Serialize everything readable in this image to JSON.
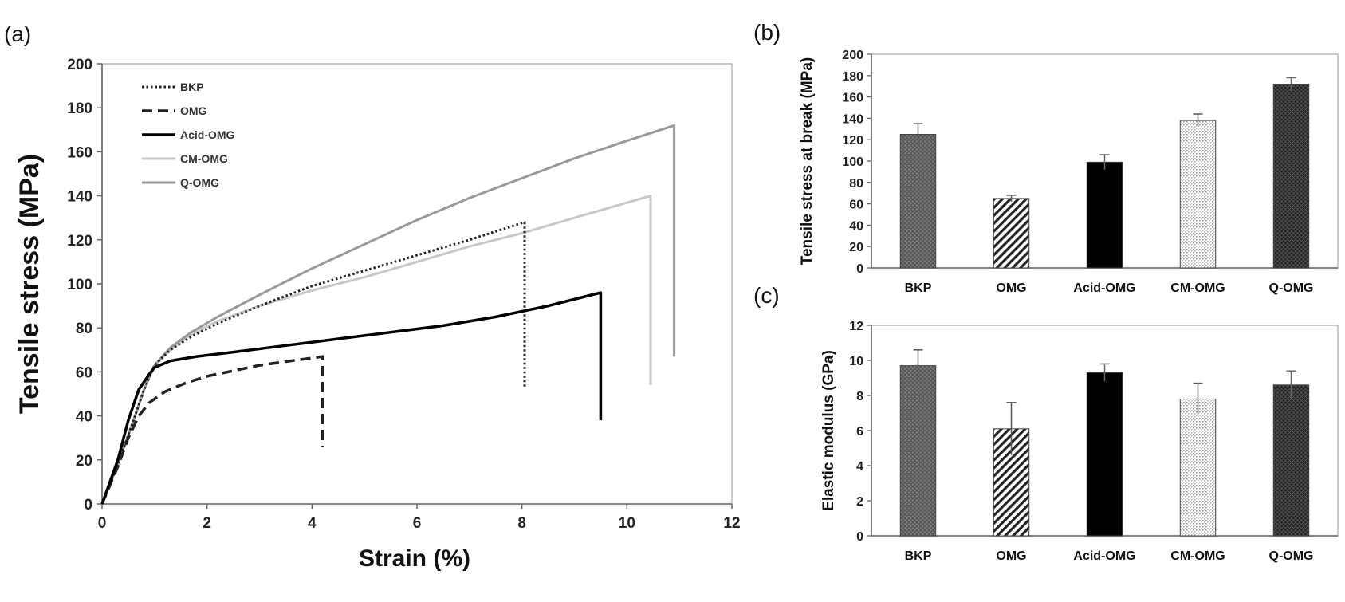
{
  "chart_data": [
    {
      "panel": "(a)",
      "type": "line",
      "xlabel": "Strain (%)",
      "ylabel": "Tensile stress (MPa)",
      "xlim": [
        0,
        12
      ],
      "ylim": [
        0,
        200
      ],
      "xticks": [
        "0",
        "2",
        "4",
        "6",
        "8",
        "10",
        "12"
      ],
      "yticks": [
        "0",
        "20",
        "40",
        "60",
        "80",
        "100",
        "120",
        "140",
        "160",
        "180",
        "200"
      ],
      "legend": "top-left",
      "series": [
        {
          "name": "BKP",
          "style": "dotted",
          "color": "#222222",
          "x": [
            0,
            0.3,
            0.6,
            0.8,
            1.0,
            1.3,
            1.7,
            2.2,
            3,
            4,
            5,
            6,
            7,
            8.05,
            8.05
          ],
          "y": [
            0,
            18,
            38,
            52,
            63,
            70,
            76,
            82,
            90,
            99,
            106,
            113,
            120,
            128,
            53
          ]
        },
        {
          "name": "OMG",
          "style": "dashed",
          "color": "#222222",
          "x": [
            0,
            0.3,
            0.5,
            0.7,
            0.9,
            1.2,
            1.6,
            2,
            3,
            4.2,
            4.2
          ],
          "y": [
            0,
            17,
            30,
            40,
            46,
            51,
            55,
            58,
            63,
            67,
            26
          ]
        },
        {
          "name": "Acid-OMG",
          "style": "solid",
          "color": "#000000",
          "x": [
            0,
            0.3,
            0.5,
            0.7,
            0.9,
            1.0,
            1.3,
            1.8,
            2.5,
            3.5,
            4.5,
            5.5,
            6.5,
            7.5,
            8.5,
            9.5,
            9.5
          ],
          "y": [
            0,
            20,
            38,
            52,
            59,
            62,
            65,
            67,
            69,
            72,
            75,
            78,
            81,
            85,
            90,
            96,
            38
          ]
        },
        {
          "name": "CM-OMG",
          "style": "solid",
          "color": "#c8c8c8",
          "x": [
            0,
            0.3,
            0.6,
            0.8,
            1.0,
            1.3,
            1.7,
            2.2,
            3,
            4,
            5,
            6,
            7,
            8,
            9,
            10.45,
            10.45
          ],
          "y": [
            0,
            18,
            38,
            52,
            63,
            70,
            77,
            83,
            90,
            97,
            103,
            110,
            117,
            123,
            130,
            140,
            54
          ]
        },
        {
          "name": "Q-OMG",
          "style": "solid",
          "color": "#999999",
          "x": [
            0,
            0.3,
            0.6,
            0.8,
            1.0,
            1.3,
            1.7,
            2.2,
            3,
            4,
            5,
            6,
            7,
            8,
            9,
            10,
            10.9,
            10.9
          ],
          "y": [
            0,
            18,
            38,
            52,
            63,
            71,
            78,
            85,
            95,
            107,
            118,
            129,
            139,
            148,
            157,
            165,
            172,
            67
          ]
        }
      ]
    },
    {
      "panel": "(b)",
      "type": "bar",
      "ylabel": "Tensile stress at break (MPa)",
      "ylim": [
        0,
        200
      ],
      "yticks": [
        "0",
        "20",
        "40",
        "60",
        "80",
        "100",
        "120",
        "140",
        "160",
        "180",
        "200"
      ],
      "categories": [
        "BKP",
        "OMG",
        "Acid-OMG",
        "CM-OMG",
        "Q-OMG"
      ],
      "values": [
        125,
        65,
        99,
        138,
        172
      ],
      "errors": [
        10,
        3,
        7,
        6,
        6
      ]
    },
    {
      "panel": "(c)",
      "type": "bar",
      "ylabel": "Elastic modulus (GPa)",
      "ylim": [
        0,
        12
      ],
      "yticks": [
        "0",
        "2",
        "4",
        "6",
        "8",
        "10",
        "12"
      ],
      "categories": [
        "BKP",
        "OMG",
        "Acid-OMG",
        "CM-OMG",
        "Q-OMG"
      ],
      "values": [
        9.7,
        6.1,
        9.3,
        7.8,
        8.6
      ],
      "errors": [
        0.9,
        1.5,
        0.5,
        0.9,
        0.8
      ]
    }
  ]
}
